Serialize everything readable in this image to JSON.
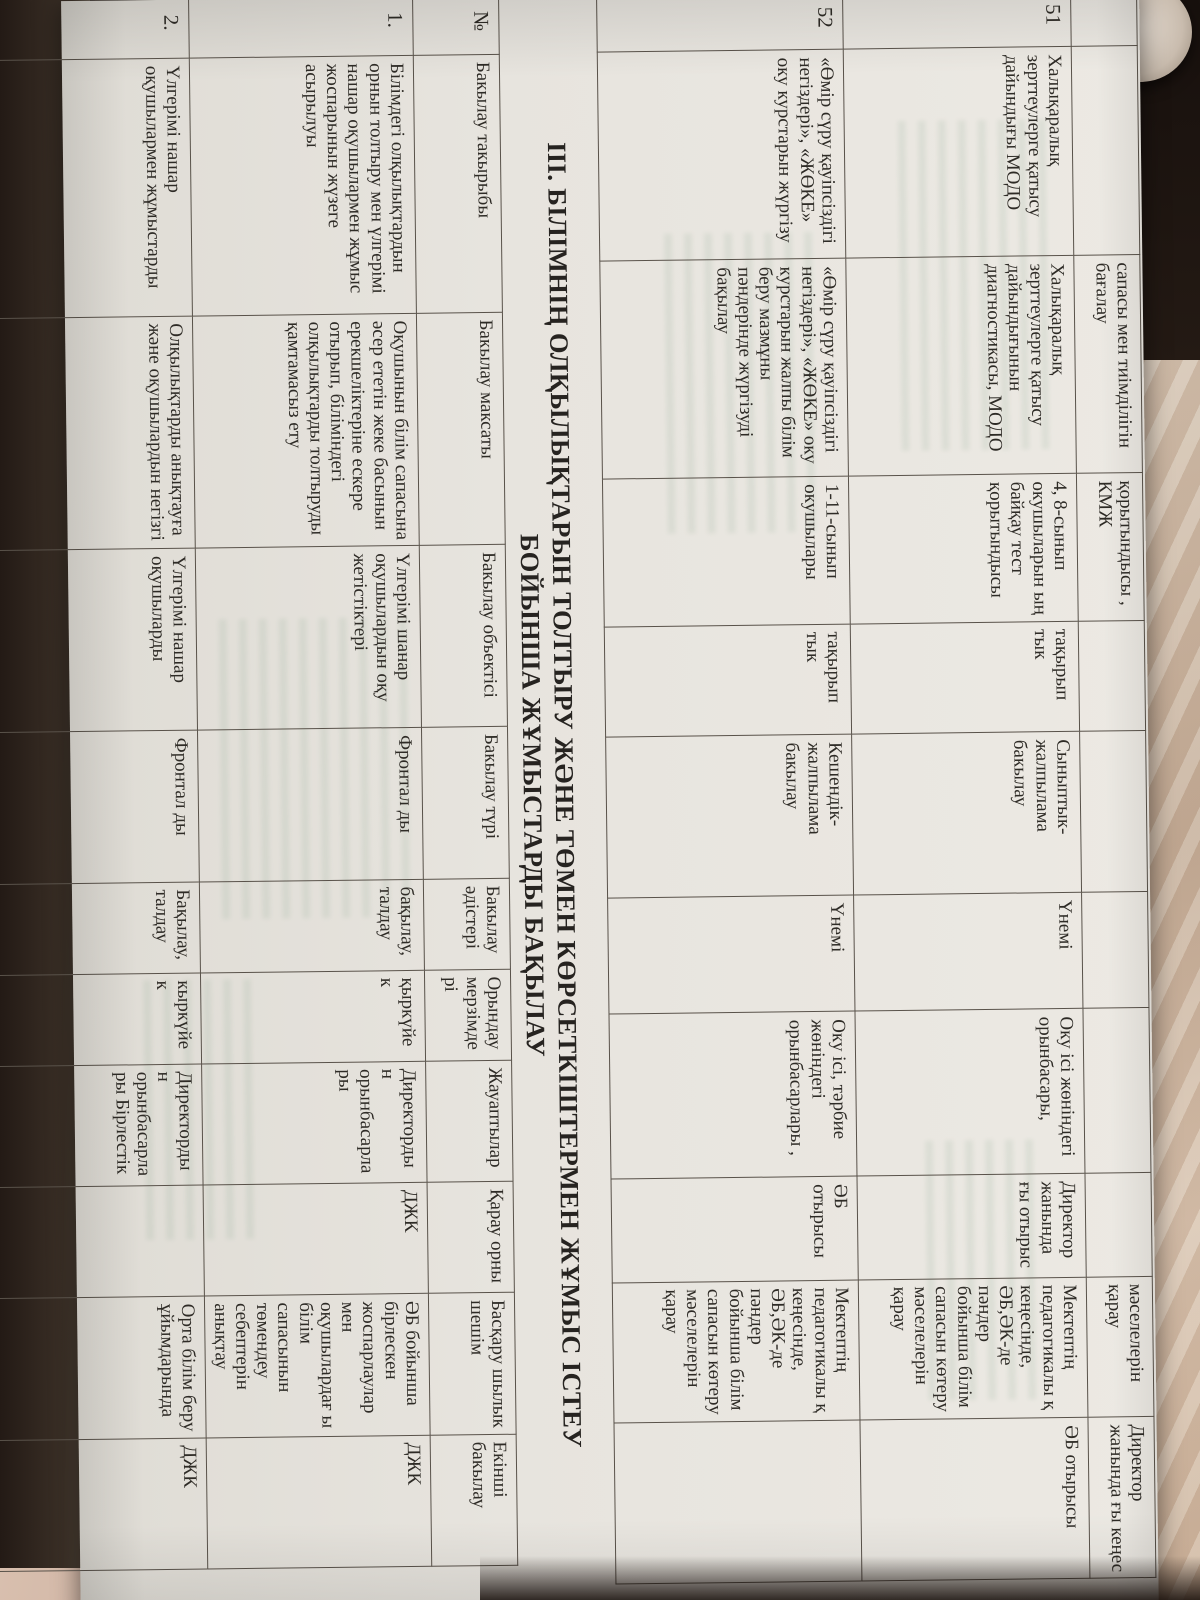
{
  "title": {
    "line1": "III. БІЛІМНІҢ ОЛҚЫЛЫҚТАРЫН ТОЛТЫРУ ЖӘНЕ ТӨМЕН КӨРСЕТКІШТЕРМЕН ЖҰМЫС ІСТЕУ",
    "line2": "БОЙЫНША ЖҰМЫСТАРДЫ БАҚЫЛАУ"
  },
  "table1": {
    "rows": [
      [
        "",
        "",
        "сапасы мен тиімділігін бағалау",
        "қорытындысы , КМЖ",
        "",
        "",
        "",
        "",
        "",
        "мәселелерін қарау",
        "Директор жанында ғы кеңес"
      ],
      [
        "51",
        "Халықаралық зерттеулерге қатысу дайындығы МОДО",
        "Халықаралық зерттеулерге қатысу дайындығынын диагностикасы, МОДО",
        "4, 8-сынып окушыларын ың байқау тест қорытындысы",
        "тақырып тык",
        "Сыныптык-жалпылама бакылау",
        "Үнемі",
        "Оку ісі жөніндегі орынбасары,",
        "Директор жанында ғы отырыс",
        "Мектептің педагогикалы қ кеңесінде, ӘБ,ӘК-де пәндер бойынша білім сапасын көтеру мәселелерін қарау",
        "ӘБ отырысы"
      ],
      [
        "52",
        "«Өмір сүру қауіпсіздігі негіздері», «ЖӨКЕ» оку курстарын жүргізу",
        "«Өмір сүру қауіпсіздігі негіздері», «ЖӨКЕ» оку курстарын жалпы білім беру мазмұны пәндерінде жүргізуді бақылау",
        "1-11-сынып окушылары",
        "тақырып тык",
        "Кешендік-жалпылама бакылау",
        "Үнемі",
        "Оку ісі, тәрбие жөніндегі орынбасарлары ,",
        "ӘБ отырысы",
        "Мектептің педагогикалы қ кеңесінде, ӘБ,ӘК-де пәндер бойынша білім сапасын көтеру мәселелерін қарау",
        ""
      ]
    ]
  },
  "table2": {
    "headers": [
      "№",
      "Бакылау такырыбы",
      "Бакылау максаты",
      "Бакылау объектісі",
      "Бакылау түрі",
      "Бакылау әдістері",
      "Орындау мерзімде рі",
      "Жауаптылар",
      "Қарау орны",
      "Басқару шылык шешім",
      "Екінші бакылау"
    ],
    "rows": [
      [
        "1.",
        "Білімдегі олқылықтардын орнын толтыру мен үлгерімі нашар оқушылармен жұмыс жоспарынын жүзеге асырылуы",
        "Оқушынын білім сапасына әсер ететін жеке басынын ерекшеліктеріне ескере отырып, біліміндегі олқылықтарды толтыруды қамтамасыз ету",
        "Үлгерімі шанар оқушылардын оқу жетістіктері",
        "Фронтал ды",
        "бақылау, талдау",
        "қыркүйек",
        "Директордын орынбасарлары",
        "ДЖК",
        "ӘБ бойынша бірлескен жоспарлаулар мен оқушылардағ ы білім сапасынын төмендеу себептерін анықтау",
        "ДЖК"
      ],
      [
        "2.",
        "Үлгерімі нашар оқушылармен жұмыстарды",
        "Олқылықтарды анықтауға және оқушылардын негізгі",
        "Үлгерімі нашар оқушыларды",
        "Фронтал ды",
        "Бақылау, талдау",
        "кыркүйек",
        "Директордын орынбасарлары Бірлестік",
        "",
        "Орта білім беру ұйымдарында",
        "ДЖК"
      ]
    ]
  }
}
